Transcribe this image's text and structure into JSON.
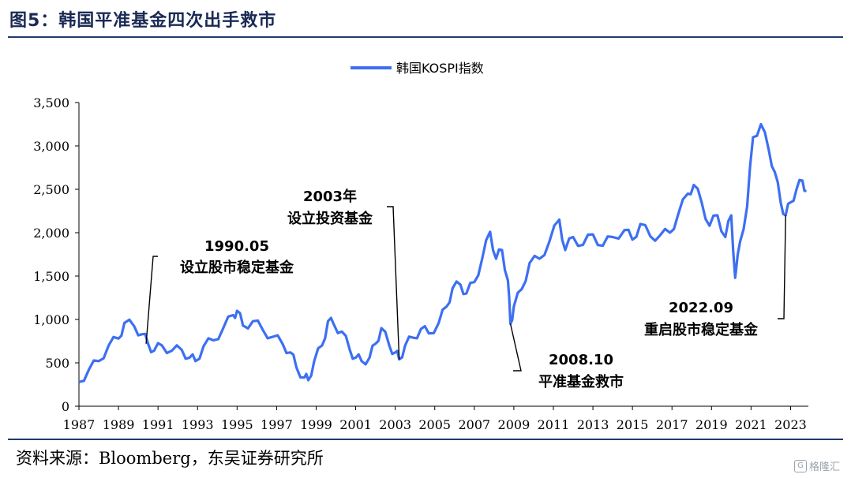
{
  "header": {
    "title": "图5：韩国平准基金四次出手救市"
  },
  "footer": {
    "source": "资料来源：Bloomberg，东吴证券研究所",
    "watermark": "格隆汇"
  },
  "chart_data": {
    "type": "line",
    "series": [
      {
        "name": "韩国KOSPI指数",
        "color": "#3d6ff2",
        "points": [
          [
            1987.0,
            280
          ],
          [
            1987.5,
            420
          ],
          [
            1988.0,
            520
          ],
          [
            1988.5,
            700
          ],
          [
            1989.0,
            780
          ],
          [
            1989.3,
            960
          ],
          [
            1989.8,
            920
          ],
          [
            1990.2,
            830
          ],
          [
            1990.5,
            720
          ],
          [
            1990.8,
            640
          ],
          [
            1991.2,
            700
          ],
          [
            1991.7,
            640
          ],
          [
            1992.2,
            650
          ],
          [
            1992.6,
            560
          ],
          [
            1992.9,
            520
          ],
          [
            1993.3,
            690
          ],
          [
            1993.8,
            760
          ],
          [
            1994.3,
            900
          ],
          [
            1994.8,
            1050
          ],
          [
            1995.0,
            1100
          ],
          [
            1995.3,
            930
          ],
          [
            1995.8,
            980
          ],
          [
            1996.3,
            880
          ],
          [
            1996.8,
            800
          ],
          [
            1997.3,
            720
          ],
          [
            1997.7,
            620
          ],
          [
            1998.0,
            450
          ],
          [
            1998.4,
            330
          ],
          [
            1998.6,
            300
          ],
          [
            1998.9,
            520
          ],
          [
            1999.3,
            700
          ],
          [
            1999.6,
            980
          ],
          [
            1999.9,
            940
          ],
          [
            2000.3,
            860
          ],
          [
            2000.7,
            650
          ],
          [
            2001.0,
            560
          ],
          [
            2001.3,
            520
          ],
          [
            2001.7,
            560
          ],
          [
            2002.0,
            720
          ],
          [
            2002.3,
            900
          ],
          [
            2002.7,
            700
          ],
          [
            2003.0,
            620
          ],
          [
            2003.2,
            540
          ],
          [
            2003.5,
            700
          ],
          [
            2003.9,
            790
          ],
          [
            2004.3,
            890
          ],
          [
            2004.7,
            840
          ],
          [
            2005.2,
            960
          ],
          [
            2005.6,
            1150
          ],
          [
            2005.9,
            1360
          ],
          [
            2006.3,
            1400
          ],
          [
            2006.6,
            1300
          ],
          [
            2007.0,
            1430
          ],
          [
            2007.4,
            1700
          ],
          [
            2007.8,
            2010
          ],
          [
            2008.1,
            1700
          ],
          [
            2008.4,
            1800
          ],
          [
            2008.7,
            1450
          ],
          [
            2008.83,
            950
          ],
          [
            2009.0,
            1150
          ],
          [
            2009.4,
            1350
          ],
          [
            2009.8,
            1650
          ],
          [
            2010.3,
            1700
          ],
          [
            2010.8,
            1900
          ],
          [
            2011.3,
            2150
          ],
          [
            2011.6,
            1800
          ],
          [
            2012.0,
            1950
          ],
          [
            2012.5,
            1860
          ],
          [
            2013.0,
            1980
          ],
          [
            2013.5,
            1850
          ],
          [
            2014.0,
            1950
          ],
          [
            2014.6,
            2030
          ],
          [
            2015.0,
            1920
          ],
          [
            2015.4,
            2100
          ],
          [
            2015.9,
            1960
          ],
          [
            2016.4,
            1970
          ],
          [
            2016.9,
            2000
          ],
          [
            2017.3,
            2200
          ],
          [
            2017.8,
            2450
          ],
          [
            2018.1,
            2550
          ],
          [
            2018.5,
            2350
          ],
          [
            2018.9,
            2080
          ],
          [
            2019.3,
            2200
          ],
          [
            2019.7,
            1950
          ],
          [
            2020.0,
            2200
          ],
          [
            2020.2,
            1480
          ],
          [
            2020.45,
            1900
          ],
          [
            2020.8,
            2300
          ],
          [
            2021.1,
            3100
          ],
          [
            2021.5,
            3250
          ],
          [
            2021.9,
            2950
          ],
          [
            2022.2,
            2700
          ],
          [
            2022.5,
            2350
          ],
          [
            2022.75,
            2200
          ],
          [
            2023.0,
            2350
          ],
          [
            2023.3,
            2500
          ],
          [
            2023.6,
            2600
          ],
          [
            2023.8,
            2480
          ]
        ]
      }
    ],
    "ylim": [
      0,
      3500
    ],
    "xlim": [
      1987,
      2023.9
    ],
    "y_ticks": [
      0,
      500,
      1000,
      1500,
      2000,
      2500,
      3000,
      3500
    ],
    "y_tick_labels": [
      "0",
      "500",
      "1,000",
      "1,500",
      "2,000",
      "2,500",
      "3,000",
      "3,500"
    ],
    "x_ticks": [
      1987,
      1989,
      1991,
      1993,
      1995,
      1997,
      1999,
      2001,
      2003,
      2005,
      2007,
      2009,
      2011,
      2013,
      2015,
      2017,
      2019,
      2021,
      2023
    ],
    "x_tick_labels": [
      "1987",
      "1989",
      "1991",
      "1993",
      "1995",
      "1997",
      "1999",
      "2001",
      "2003",
      "2005",
      "2007",
      "2009",
      "2011",
      "2013",
      "2015",
      "2017",
      "2019",
      "2021",
      "2023"
    ],
    "legend": {
      "position": "top-center",
      "label": "韩国KOSPI指数"
    },
    "annotations": [
      {
        "line1": "1990.05",
        "line2": "设立股市稳定基金",
        "x": 1990.4,
        "y": 720
      },
      {
        "line1": "2003年",
        "line2": "设立投资基金",
        "x": 2003.2,
        "y": 540
      },
      {
        "line1": "2008.10",
        "line2": "平准基金救市",
        "x": 2008.83,
        "y": 950
      },
      {
        "line1": "2022.09",
        "line2": "重启股市稳定基金",
        "x": 2022.75,
        "y": 2200
      }
    ]
  }
}
